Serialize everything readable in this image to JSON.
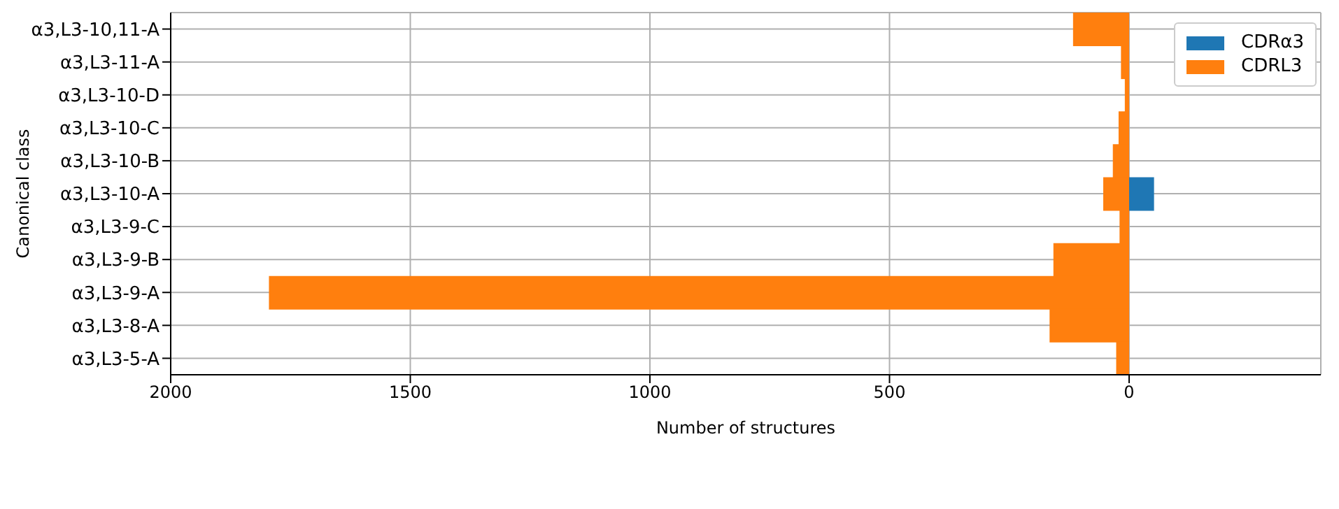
{
  "chart_data": {
    "type": "bar",
    "orientation": "horizontal",
    "xlabel": "Number of structures",
    "ylabel": "Canonical class",
    "categories": [
      "α3,L3-10,11-A",
      "α3,L3-11-A",
      "α3,L3-10-D",
      "α3,L3-10-C",
      "α3,L3-10-B",
      "α3,L3-10-A",
      "α3,L3-9-C",
      "α3,L3-9-B",
      "α3,L3-9-A",
      "α3,L3-8-A",
      "α3,L3-5-A"
    ],
    "series": [
      {
        "name": "CDRα3",
        "color": "#1f77b4",
        "values": [
          null,
          null,
          null,
          null,
          null,
          -52,
          null,
          null,
          null,
          null,
          null
        ]
      },
      {
        "name": "CDRL3",
        "color": "#ff7f0e",
        "values": [
          117,
          17,
          9,
          22,
          34,
          54,
          20,
          158,
          1795,
          166,
          27
        ]
      }
    ],
    "xlim": [
      2000,
      -400
    ],
    "xticks": [
      2000,
      1500,
      1000,
      500,
      0
    ],
    "grid": true,
    "legend": "top right"
  }
}
